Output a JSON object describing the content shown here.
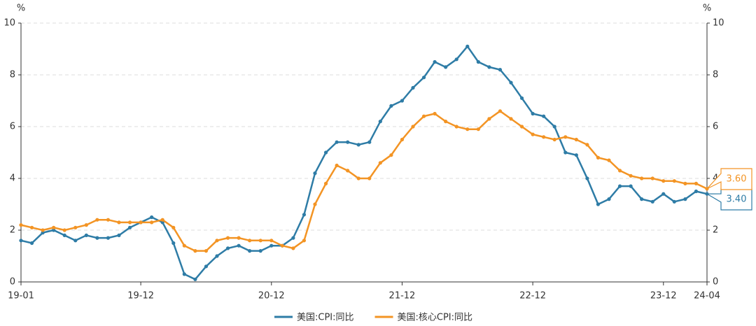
{
  "chart_data": {
    "type": "line",
    "y_label": "%",
    "y2_label": "%",
    "categories": [
      "19-01",
      null,
      null,
      null,
      null,
      null,
      null,
      null,
      null,
      null,
      null,
      "19-12",
      null,
      null,
      null,
      null,
      null,
      null,
      null,
      null,
      null,
      null,
      null,
      "20-12",
      null,
      null,
      null,
      null,
      null,
      null,
      null,
      null,
      null,
      null,
      null,
      "21-12",
      null,
      null,
      null,
      null,
      null,
      null,
      null,
      null,
      null,
      null,
      null,
      "22-12",
      null,
      null,
      null,
      null,
      null,
      null,
      null,
      null,
      null,
      null,
      null,
      "23-12",
      null,
      null,
      null,
      "24-04"
    ],
    "series": [
      {
        "name": "美国:CPI:同比",
        "color": "#2e7ca6",
        "values": [
          1.6,
          1.5,
          1.9,
          2.0,
          1.8,
          1.6,
          1.8,
          1.7,
          1.7,
          1.8,
          2.1,
          2.3,
          2.5,
          2.3,
          1.5,
          0.3,
          0.1,
          0.6,
          1.0,
          1.3,
          1.4,
          1.2,
          1.2,
          1.4,
          1.4,
          1.7,
          2.6,
          4.2,
          5.0,
          5.4,
          5.4,
          5.3,
          5.4,
          6.2,
          6.8,
          7.0,
          7.5,
          7.9,
          8.5,
          8.3,
          8.6,
          9.1,
          8.5,
          8.3,
          8.2,
          7.7,
          7.1,
          6.5,
          6.4,
          6.0,
          5.0,
          4.9,
          4.0,
          3.0,
          3.2,
          3.7,
          3.7,
          3.2,
          3.1,
          3.4,
          3.1,
          3.2,
          3.5,
          3.4
        ],
        "value_labels": [
          null,
          null,
          null,
          null,
          null,
          null,
          null,
          null,
          null,
          null,
          null,
          null,
          null,
          null,
          null,
          null,
          null,
          null,
          null,
          null,
          null,
          null,
          null,
          null,
          null,
          null,
          null,
          null,
          null,
          null,
          null,
          null,
          null,
          null,
          null,
          null,
          null,
          null,
          null,
          null,
          null,
          null,
          null,
          null,
          null,
          null,
          null,
          null,
          null,
          null,
          null,
          null,
          null,
          null,
          null,
          null,
          null,
          null,
          null,
          null,
          null,
          null,
          null,
          "3.40"
        ]
      },
      {
        "name": "美国:核心CPI:同比",
        "color": "#f39424",
        "values": [
          2.2,
          2.1,
          2.0,
          2.1,
          2.0,
          2.1,
          2.2,
          2.4,
          2.4,
          2.3,
          2.3,
          2.3,
          2.3,
          2.4,
          2.1,
          1.4,
          1.2,
          1.2,
          1.6,
          1.7,
          1.7,
          1.6,
          1.6,
          1.6,
          1.4,
          1.3,
          1.6,
          3.0,
          3.8,
          4.5,
          4.3,
          4.0,
          4.0,
          4.6,
          4.9,
          5.5,
          6.0,
          6.4,
          6.5,
          6.2,
          6.0,
          5.9,
          5.9,
          6.3,
          6.6,
          6.3,
          6.0,
          5.7,
          5.6,
          5.5,
          5.6,
          5.5,
          5.3,
          4.8,
          4.7,
          4.3,
          4.1,
          4.0,
          4.0,
          3.9,
          3.9,
          3.8,
          3.8,
          3.6
        ],
        "value_labels": [
          null,
          null,
          null,
          null,
          null,
          null,
          null,
          null,
          null,
          null,
          null,
          null,
          null,
          null,
          null,
          null,
          null,
          null,
          null,
          null,
          null,
          null,
          null,
          null,
          null,
          null,
          null,
          null,
          null,
          null,
          null,
          null,
          null,
          null,
          null,
          null,
          null,
          null,
          null,
          null,
          null,
          null,
          null,
          null,
          null,
          null,
          null,
          null,
          null,
          null,
          null,
          null,
          null,
          null,
          null,
          null,
          null,
          null,
          null,
          null,
          null,
          null,
          null,
          "3.60"
        ]
      }
    ],
    "ylim": [
      0,
      10
    ],
    "yticks": [
      0,
      2,
      4,
      6,
      8,
      10
    ],
    "y2lim": [
      0,
      10
    ],
    "y2ticks": [
      0,
      2,
      4,
      6,
      8,
      10
    ],
    "grid": true,
    "legend": "bottom"
  }
}
